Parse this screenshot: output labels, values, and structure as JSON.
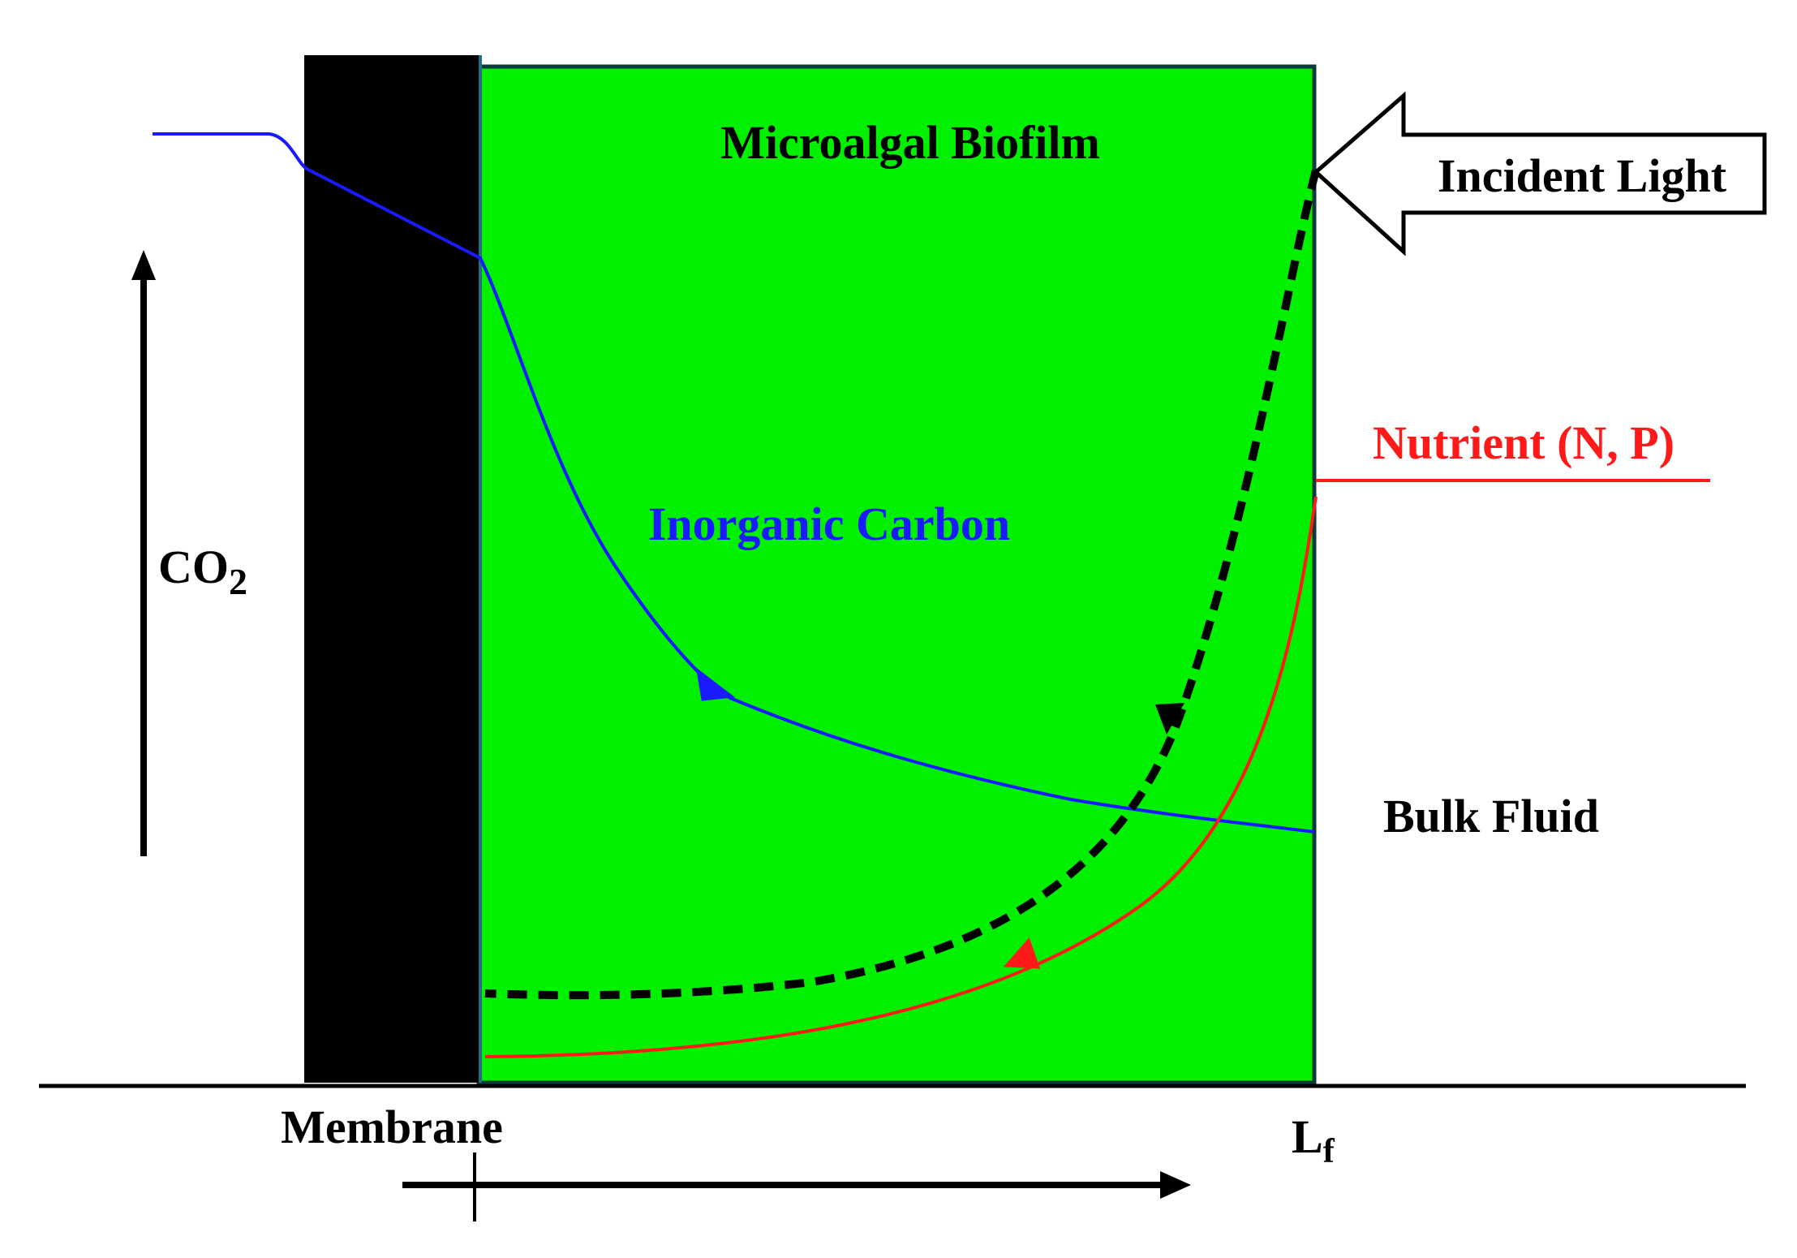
{
  "diagram": {
    "labels": {
      "biofilm": "Microalgal Biofilm",
      "incident_light": "Incident Light",
      "nutrient": "Nutrient (N, P)",
      "inorganic_carbon": "Inorganic Carbon",
      "co2_base": "CO",
      "co2_sub": "2",
      "bulk_fluid": "Bulk Fluid",
      "membrane": "Membrane",
      "lf_base": "L",
      "lf_sub": "f"
    },
    "colors": {
      "biofilm_fill": "#00f000",
      "membrane_fill": "#000000",
      "inorganic_carbon": "#1a1aff",
      "nutrient": "#ff1a1a",
      "light_profile": "#000000",
      "text": "#000000"
    },
    "curves": [
      {
        "name": "inorganic-carbon-profile",
        "style": "solid",
        "direction": "into biofilm from membrane"
      },
      {
        "name": "light-profile",
        "style": "dashed",
        "direction": "into biofilm from bulk fluid"
      },
      {
        "name": "nutrient-profile",
        "style": "solid",
        "direction": "into biofilm from bulk fluid"
      }
    ]
  }
}
